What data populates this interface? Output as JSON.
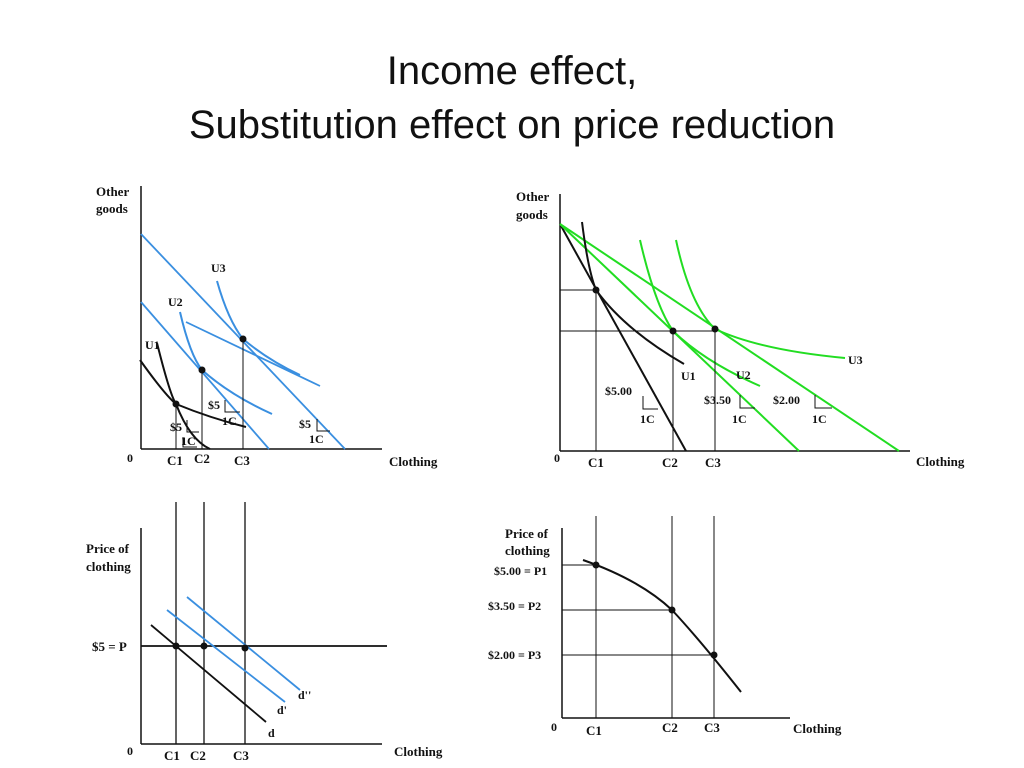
{
  "title": {
    "line1": "Income effect,",
    "line2": "Substitution effect on price reduction"
  },
  "colors": {
    "blue": "#3a8fe0",
    "green": "#22dd22",
    "black": "#111111"
  },
  "panel_top_left": {
    "y_axis_label_1": "Other",
    "y_axis_label_2": "goods",
    "x_axis_label": "Clothing",
    "origin": "0",
    "curves": [
      "U1",
      "U2",
      "U3"
    ],
    "x_ticks": [
      "C1",
      "C2",
      "C3"
    ],
    "slope_price": "$5",
    "slope_unit": "1C"
  },
  "panel_top_right": {
    "y_axis_label_1": "Other",
    "y_axis_label_2": "goods",
    "x_axis_label": "Clothing",
    "origin": "0",
    "curves": [
      "U1",
      "U2",
      "U3"
    ],
    "x_ticks": [
      "C1",
      "C2",
      "C3"
    ],
    "prices": [
      "$5.00",
      "$3.50",
      "$2.00"
    ],
    "slope_unit": "1C"
  },
  "panel_bottom_left": {
    "y_axis_label_1": "Price of",
    "y_axis_label_2": "clothing",
    "x_axis_label": "Clothing",
    "origin": "0",
    "price_line_label": "$5 = P",
    "demand_curves": [
      "d",
      "d'",
      "d''"
    ],
    "x_ticks": [
      "C1",
      "C2",
      "C3"
    ]
  },
  "panel_bottom_right": {
    "y_axis_label_1": "Price of",
    "y_axis_label_2": "clothing",
    "x_axis_label": "Clothing",
    "origin": "0",
    "price_labels": [
      "$5.00 = P1",
      "$3.50  = P2",
      "$2.00 = P3"
    ],
    "x_ticks": [
      "C1",
      "C2",
      "C3"
    ]
  }
}
